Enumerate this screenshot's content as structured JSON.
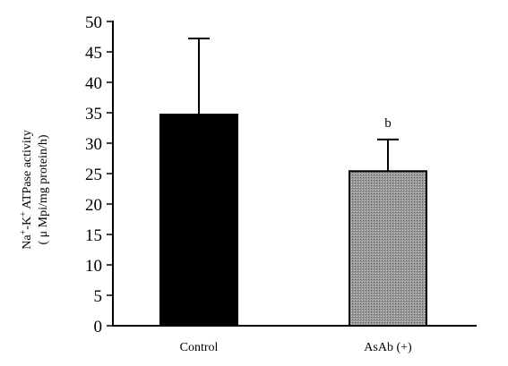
{
  "chart_data": {
    "type": "bar",
    "categories": [
      "Control",
      "AsAb (+)"
    ],
    "values": [
      34.7,
      25.4
    ],
    "errors": [
      12.5,
      5.2
    ],
    "annotations": [
      "",
      "b"
    ],
    "ylabel_line1": "Na",
    "ylabel_sup1": "+",
    "ylabel_mid": "-K",
    "ylabel_sup2": "+",
    "ylabel_rest": " ATPase activity",
    "ylabel_line2": "( μ Mpi/mg protein/h)",
    "ylim": [
      0,
      50
    ],
    "yticks": [
      0,
      5,
      10,
      15,
      20,
      25,
      30,
      35,
      40,
      45,
      50
    ],
    "bar_colors": [
      "#000000",
      "#8a8a8a"
    ],
    "grid": false,
    "legend": "none"
  }
}
